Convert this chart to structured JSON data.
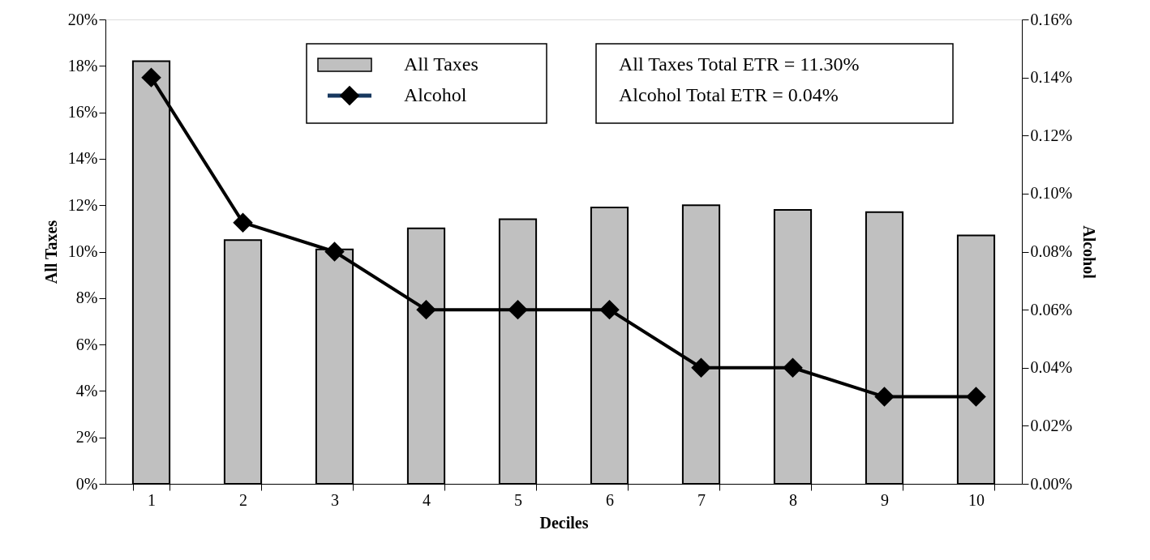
{
  "chart_data": {
    "type": "bar",
    "xlabel": "Deciles",
    "ylabel": "All Taxes",
    "y2label": "Alcohol",
    "categories": [
      "1",
      "2",
      "3",
      "4",
      "5",
      "6",
      "7",
      "8",
      "9",
      "10"
    ],
    "series": [
      {
        "name": "All Taxes",
        "color": "#c0c0c0",
        "values": [
          18.2,
          10.5,
          10.1,
          11.0,
          11.4,
          11.9,
          12.0,
          11.8,
          11.7,
          10.7
        ]
      },
      {
        "name": "Alcohol",
        "type": "line",
        "axis": "y2",
        "color": "#000000",
        "values": [
          0.14,
          0.09,
          0.08,
          0.06,
          0.06,
          0.06,
          0.04,
          0.04,
          0.03,
          0.03
        ]
      }
    ],
    "ylim": [
      0,
      20
    ],
    "yticks": [
      {
        "value": 0,
        "label": "0%"
      },
      {
        "value": 2,
        "label": "2%"
      },
      {
        "value": 4,
        "label": "4%"
      },
      {
        "value": 6,
        "label": "6%"
      },
      {
        "value": 8,
        "label": "8%"
      },
      {
        "value": 10,
        "label": "10%"
      },
      {
        "value": 12,
        "label": "12%"
      },
      {
        "value": 14,
        "label": "14%"
      },
      {
        "value": 16,
        "label": "16%"
      },
      {
        "value": 18,
        "label": "18%"
      },
      {
        "value": 20,
        "label": "20%"
      }
    ],
    "y2lim": [
      0,
      0.16
    ],
    "y2ticks": [
      {
        "value": 0,
        "label": "0.00%"
      },
      {
        "value": 0.02,
        "label": "0.02%"
      },
      {
        "value": 0.04,
        "label": "0.04%"
      },
      {
        "value": 0.06,
        "label": "0.06%"
      },
      {
        "value": 0.08,
        "label": "0.08%"
      },
      {
        "value": 0.1,
        "label": "0.10%"
      },
      {
        "value": 0.12,
        "label": "0.12%"
      },
      {
        "value": 0.14,
        "label": "0.14%"
      },
      {
        "value": 0.16,
        "label": "0.16%"
      }
    ],
    "annotations": [
      "All Taxes Total ETR  =  11.30%",
      "Alcohol Total ETR      =    0.04%"
    ],
    "legend": "top",
    "grid": false,
    "marker": "diamond",
    "line_style": "solid"
  }
}
